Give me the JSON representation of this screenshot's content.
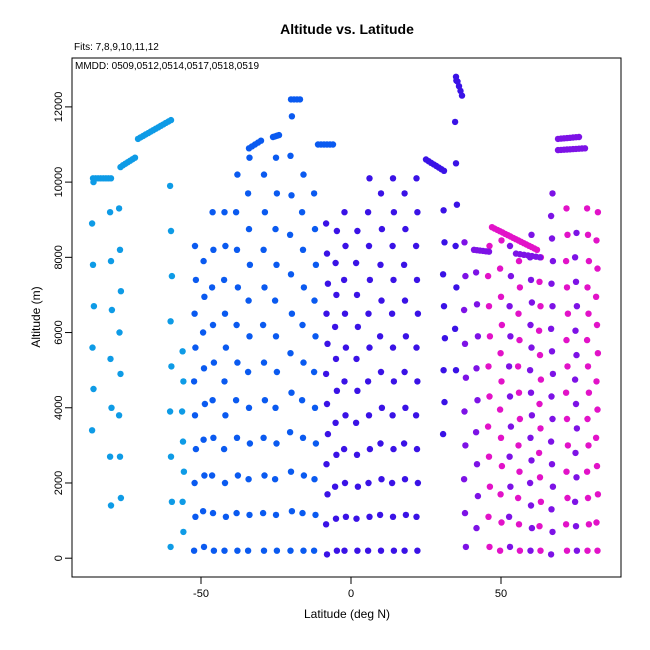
{
  "chart_data": {
    "type": "scatter",
    "title": "Altitude vs. Latitude",
    "annotations": {
      "fits": "Fits: 7,8,9,10,11,12",
      "mmdd": "MMDD: 0509,0512,0514,0517,0518,0519"
    },
    "xlabel": "Latitude (deg N)",
    "ylabel": "Altitude (m)",
    "xlim": [
      -93,
      90
    ],
    "ylim": [
      -500,
      13300
    ],
    "xticks": [
      -50,
      0,
      50
    ],
    "yticks": [
      0,
      2000,
      4000,
      6000,
      8000,
      10000,
      12000
    ],
    "grid": false,
    "legend": "none",
    "marker": "filled-circle",
    "colors": {
      "light_blue": "#0e9be6",
      "blue": "#0a5af0",
      "indigo": "#3a12e6",
      "purple": "#7d12e6",
      "magenta": "#e212c8"
    },
    "columns": [
      {
        "color": "light_blue",
        "x": -86,
        "ymin": 3400,
        "ymax": 10000,
        "step": 1100
      },
      {
        "color": "light_blue",
        "x": -80,
        "ymin": 1400,
        "ymax": 10200,
        "step": 1300
      },
      {
        "color": "light_blue",
        "x": -77,
        "ymin": 1600,
        "ymax": 10600,
        "step": 1100
      },
      {
        "color": "light_blue",
        "x": -60,
        "ymin": 300,
        "ymax": 10800,
        "step": 1200
      },
      {
        "color": "light_blue",
        "x": -56,
        "ymin": 700,
        "ymax": 5900,
        "step": 800
      },
      {
        "color": "blue",
        "x": -52,
        "ymin": 200,
        "ymax": 8600,
        "step": 900
      },
      {
        "color": "blue",
        "x": -49,
        "ymin": 300,
        "ymax": 8500,
        "step": 950
      },
      {
        "color": "blue",
        "x": -46,
        "ymin": 200,
        "ymax": 10100,
        "step": 1000
      },
      {
        "color": "blue",
        "x": -42,
        "ymin": 200,
        "ymax": 9800,
        "step": 900
      },
      {
        "color": "blue",
        "x": -38,
        "ymin": 200,
        "ymax": 10300,
        "step": 1000
      },
      {
        "color": "blue",
        "x": -34,
        "ymin": 200,
        "ymax": 10700,
        "step": 950
      },
      {
        "color": "blue",
        "x": -29,
        "ymin": 200,
        "ymax": 10900,
        "step": 1000
      },
      {
        "color": "blue",
        "x": -25,
        "ymin": 200,
        "ymax": 11200,
        "step": 950
      },
      {
        "color": "blue",
        "x": -20,
        "ymin": 200,
        "ymax": 12200,
        "step": 1050
      },
      {
        "color": "blue",
        "x": -16,
        "ymin": 200,
        "ymax": 10400,
        "step": 1000
      },
      {
        "color": "blue",
        "x": -12,
        "ymin": 200,
        "ymax": 10300,
        "step": 950
      },
      {
        "color": "indigo",
        "x": -8,
        "ymin": 100,
        "ymax": 9400,
        "step": 800
      },
      {
        "color": "indigo",
        "x": -5,
        "ymin": 200,
        "ymax": 9300,
        "step": 850
      },
      {
        "color": "indigo",
        "x": -2,
        "ymin": 200,
        "ymax": 9400,
        "step": 900
      },
      {
        "color": "indigo",
        "x": 2,
        "ymin": 200,
        "ymax": 9500,
        "step": 850
      },
      {
        "color": "indigo",
        "x": 6,
        "ymin": 200,
        "ymax": 10700,
        "step": 900
      },
      {
        "color": "indigo",
        "x": 10,
        "ymin": 200,
        "ymax": 10600,
        "step": 950
      },
      {
        "color": "indigo",
        "x": 14,
        "ymin": 200,
        "ymax": 10700,
        "step": 900
      },
      {
        "color": "indigo",
        "x": 18,
        "ymin": 200,
        "ymax": 10600,
        "step": 950
      },
      {
        "color": "indigo",
        "x": 22,
        "ymin": 200,
        "ymax": 10500,
        "step": 900
      },
      {
        "color": "indigo",
        "x": 31,
        "ymin": 3300,
        "ymax": 9400,
        "step": 850
      },
      {
        "color": "indigo",
        "x": 35,
        "ymin": 5000,
        "ymax": 12700,
        "step": 1100
      },
      {
        "color": "purple",
        "x": 38,
        "ymin": 300,
        "ymax": 8800,
        "step": 900
      },
      {
        "color": "purple",
        "x": 42,
        "ymin": 800,
        "ymax": 8400,
        "step": 850
      },
      {
        "color": "magenta",
        "x": 46,
        "ymin": 300,
        "ymax": 8900,
        "step": 800
      },
      {
        "color": "magenta",
        "x": 50,
        "ymin": 200,
        "ymax": 8700,
        "step": 750
      },
      {
        "color": "purple",
        "x": 53,
        "ymin": 300,
        "ymax": 8300,
        "step": 800
      },
      {
        "color": "magenta",
        "x": 56,
        "ymin": 200,
        "ymax": 8500,
        "step": 700
      },
      {
        "color": "purple",
        "x": 60,
        "ymin": 200,
        "ymax": 8800,
        "step": 600
      },
      {
        "color": "magenta",
        "x": 63,
        "ymin": 200,
        "ymax": 8600,
        "step": 650
      },
      {
        "color": "purple",
        "x": 67,
        "ymin": 100,
        "ymax": 9800,
        "step": 600
      },
      {
        "color": "magenta",
        "x": 72,
        "ymin": 200,
        "ymax": 9400,
        "step": 700
      },
      {
        "color": "purple",
        "x": 75,
        "ymin": 200,
        "ymax": 9000,
        "step": 650
      },
      {
        "color": "magenta",
        "x": 79,
        "ymin": 200,
        "ymax": 9400,
        "step": 700
      },
      {
        "color": "magenta",
        "x": 82,
        "ymin": 200,
        "ymax": 9600,
        "step": 750
      }
    ],
    "streaks": [
      {
        "color": "light_blue",
        "x": [
          -86,
          -80
        ],
        "y": [
          10100,
          10100
        ],
        "n": 8
      },
      {
        "color": "light_blue",
        "x": [
          -76,
          -72
        ],
        "y": [
          10450,
          10650
        ],
        "n": 6
      },
      {
        "color": "light_blue",
        "x": [
          -71,
          -60
        ],
        "y": [
          11150,
          11650
        ],
        "n": 14
      },
      {
        "color": "blue",
        "x": [
          -34,
          -30
        ],
        "y": [
          10900,
          11100
        ],
        "n": 5
      },
      {
        "color": "blue",
        "x": [
          -26,
          -24
        ],
        "y": [
          11200,
          11250
        ],
        "n": 4
      },
      {
        "color": "blue",
        "x": [
          -20,
          -17
        ],
        "y": [
          12200,
          12200
        ],
        "n": 4
      },
      {
        "color": "blue",
        "x": [
          -11,
          -6
        ],
        "y": [
          11000,
          11000
        ],
        "n": 6
      },
      {
        "color": "indigo",
        "x": [
          25,
          31
        ],
        "y": [
          10600,
          10300
        ],
        "n": 8
      },
      {
        "color": "indigo",
        "x": [
          35,
          37
        ],
        "y": [
          12800,
          12300
        ],
        "n": 5
      },
      {
        "color": "purple",
        "x": [
          41,
          46
        ],
        "y": [
          8200,
          8150
        ],
        "n": 6
      },
      {
        "color": "purple",
        "x": [
          55,
          63
        ],
        "y": [
          8100,
          8000
        ],
        "n": 7
      },
      {
        "color": "magenta",
        "x": [
          47,
          62
        ],
        "y": [
          8800,
          8200
        ],
        "n": 18
      },
      {
        "color": "purple",
        "x": [
          69,
          76
        ],
        "y": [
          11150,
          11200
        ],
        "n": 8
      },
      {
        "color": "purple",
        "x": [
          69,
          78
        ],
        "y": [
          10850,
          10900
        ],
        "n": 10
      }
    ]
  }
}
